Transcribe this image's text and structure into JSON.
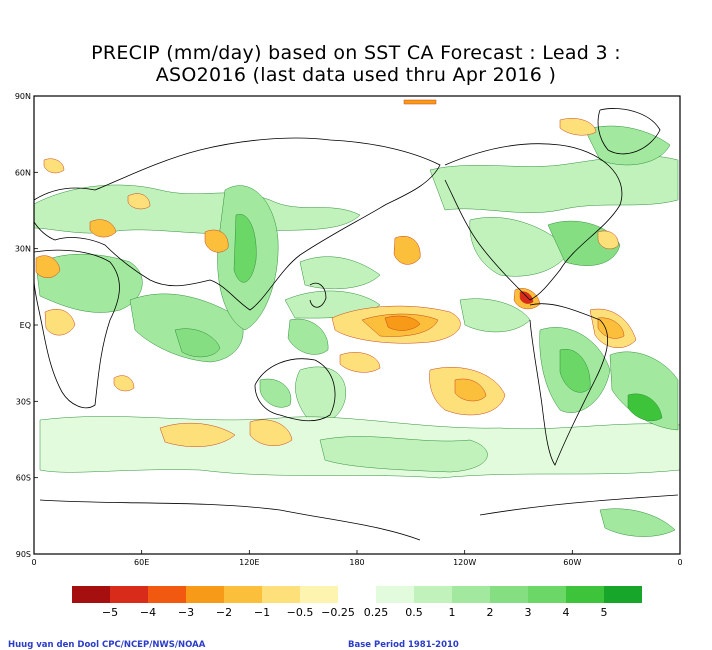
{
  "title_line1": "PRECIP (mm/day) based on SST CA Forecast : Lead 3 :",
  "title_line2": "ASO2016 (last data used thru Apr 2016 )",
  "lat_labels": [
    "90N",
    "60N",
    "30N",
    "EQ",
    "30S",
    "60S",
    "90S"
  ],
  "lon_labels": [
    "0",
    "60E",
    "120E",
    "180",
    "120W",
    "60W",
    "0"
  ],
  "legend": {
    "colors": [
      "#a50f0f",
      "#d92b1a",
      "#f0590f",
      "#f79a18",
      "#fbbf3c",
      "#fde07a",
      "#fdf4b0",
      "#ffffff",
      "#e2fbdc",
      "#c1f2bb",
      "#a2e89e",
      "#86de82",
      "#6ad766",
      "#3ec43a",
      "#17a52a"
    ],
    "labels": [
      "−5",
      "−4",
      "−3",
      "−2",
      "−1",
      "−0.5",
      "−0.25",
      "0.25",
      "0.5",
      "1",
      "2",
      "3",
      "4",
      "5"
    ]
  },
  "credit_left": "Huug van den Dool  CPC/NCEP/NWS/NOAA",
  "credit_right": "Base Period 1981-2010",
  "colors": {
    "ocean": "#ffffff",
    "coast": "#000000",
    "frame": "#000000"
  }
}
